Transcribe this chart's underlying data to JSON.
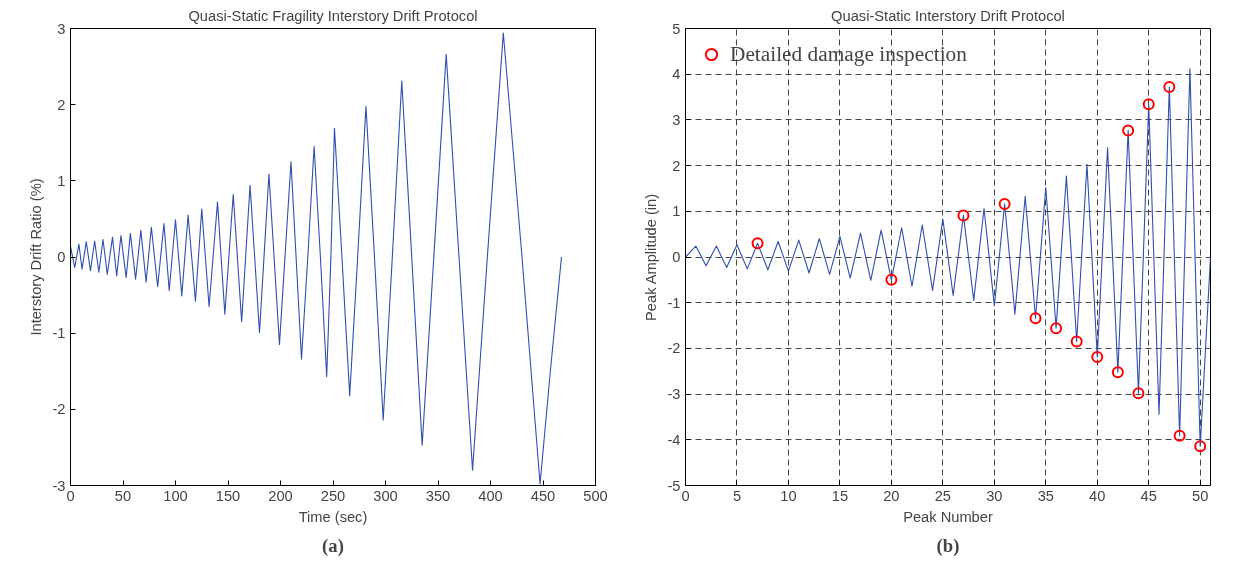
{
  "chart_data": [
    {
      "type": "line",
      "title": "Quasi-Static Fragility Interstory Drift Protocol",
      "xlabel": "Time (sec)",
      "ylabel": "Interstory Drift Ratio (%)",
      "annotations": [
        "(a)"
      ],
      "xlim": [
        0,
        500
      ],
      "ylim": [
        -3,
        3
      ],
      "xticks": [
        0,
        50,
        100,
        150,
        200,
        250,
        300,
        350,
        400,
        450,
        500
      ],
      "yticks": [
        -3,
        -2,
        -1,
        0,
        1,
        2,
        3
      ],
      "grid": false,
      "legend": false,
      "marker": "none",
      "line_style": "solid",
      "series": [
        {
          "color": "#2f4fb0",
          "x": [
            0,
            4,
            8,
            11,
            15,
            19,
            23,
            27,
            31,
            35,
            40,
            44,
            48,
            53,
            57,
            62,
            67,
            72,
            77,
            83,
            89,
            94,
            100,
            106,
            112,
            119,
            125,
            132,
            140,
            147,
            155,
            163,
            171,
            180,
            189,
            199,
            210,
            220,
            226,
            232,
            238,
            244,
            248,
            251.4,
            258.5,
            265.9,
            273.5,
            281.4,
            289.5,
            297.8,
            306.5,
            315.5,
            325,
            334.9,
            346,
            357.8,
            370,
            382.9,
            397,
            412.2,
            430,
            447.2,
            457,
            467.6
          ],
          "values": [
            0.14,
            -0.14,
            0.17,
            -0.16,
            0.2,
            -0.18,
            0.21,
            -0.2,
            0.23,
            -0.23,
            0.26,
            -0.25,
            0.28,
            -0.27,
            0.31,
            -0.29,
            0.35,
            -0.33,
            0.39,
            -0.39,
            0.44,
            -0.44,
            0.49,
            -0.51,
            0.55,
            -0.58,
            0.63,
            -0.65,
            0.72,
            -0.75,
            0.82,
            -0.85,
            0.94,
            -0.99,
            1.09,
            -1.15,
            1.25,
            -1.34,
            0,
            1.45,
            0,
            -1.57,
            0,
            1.69,
            0,
            -1.82,
            0,
            1.98,
            0,
            -2.14,
            0,
            2.31,
            0,
            -2.47,
            0,
            2.66,
            0,
            -2.8,
            0,
            2.94,
            0,
            -2.98,
            -1.5,
            0
          ]
        }
      ]
    },
    {
      "type": "line",
      "title": "Quasi-Static Interstory Drift Protocol",
      "xlabel": "Peak Number",
      "ylabel": "Peak Amplitude (in)",
      "annotations": [
        "(b)"
      ],
      "xlim": [
        0,
        51
      ],
      "ylim": [
        -5,
        5
      ],
      "xticks": [
        0,
        5,
        10,
        15,
        20,
        25,
        30,
        35,
        40,
        45,
        50
      ],
      "yticks": [
        -5,
        -4,
        -3,
        -2,
        -1,
        0,
        1,
        2,
        3,
        4,
        5
      ],
      "grid": true,
      "legend": "top left",
      "line_style": "solid",
      "series": [
        {
          "type": "line",
          "color": "#2f4fb0",
          "marker": "none",
          "x": [
            0,
            1,
            2,
            3,
            4,
            5,
            6,
            7,
            8,
            9,
            10,
            11,
            12,
            13,
            14,
            15,
            16,
            17,
            18,
            19,
            20,
            21,
            22,
            23,
            24,
            25,
            26,
            27,
            28,
            29,
            30,
            31,
            32,
            33,
            34,
            35,
            36,
            37,
            38,
            39,
            40,
            41,
            42,
            43,
            44,
            45,
            46,
            47,
            48,
            49,
            50,
            51
          ],
          "values": [
            0,
            0.24,
            -0.19,
            0.24,
            -0.23,
            0.27,
            -0.26,
            0.3,
            -0.28,
            0.34,
            -0.31,
            0.37,
            -0.35,
            0.4,
            -0.38,
            0.45,
            -0.46,
            0.52,
            -0.51,
            0.59,
            -0.5,
            0.64,
            -0.64,
            0.7,
            -0.73,
            0.83,
            -0.84,
            0.91,
            -0.95,
            1.06,
            -1.07,
            1.16,
            -1.25,
            1.33,
            -1.34,
            1.52,
            -1.56,
            1.77,
            -1.85,
            2.03,
            -2.19,
            2.39,
            -2.52,
            2.77,
            -2.98,
            3.34,
            -3.44,
            3.72,
            -3.91,
            4.12,
            -4.14,
            0
          ]
        },
        {
          "type": "scatter",
          "name": "Detailed damage inspection",
          "color": "#ff0000",
          "marker": "circle",
          "x": [
            7,
            20,
            27,
            31,
            34,
            36,
            38,
            40,
            42,
            43,
            44,
            45,
            47,
            48,
            50
          ],
          "values": [
            0.3,
            -0.5,
            0.91,
            1.16,
            -1.34,
            -1.56,
            -1.85,
            -2.19,
            -2.52,
            2.77,
            -2.98,
            3.34,
            3.72,
            -3.91,
            -4.14
          ]
        }
      ]
    }
  ]
}
